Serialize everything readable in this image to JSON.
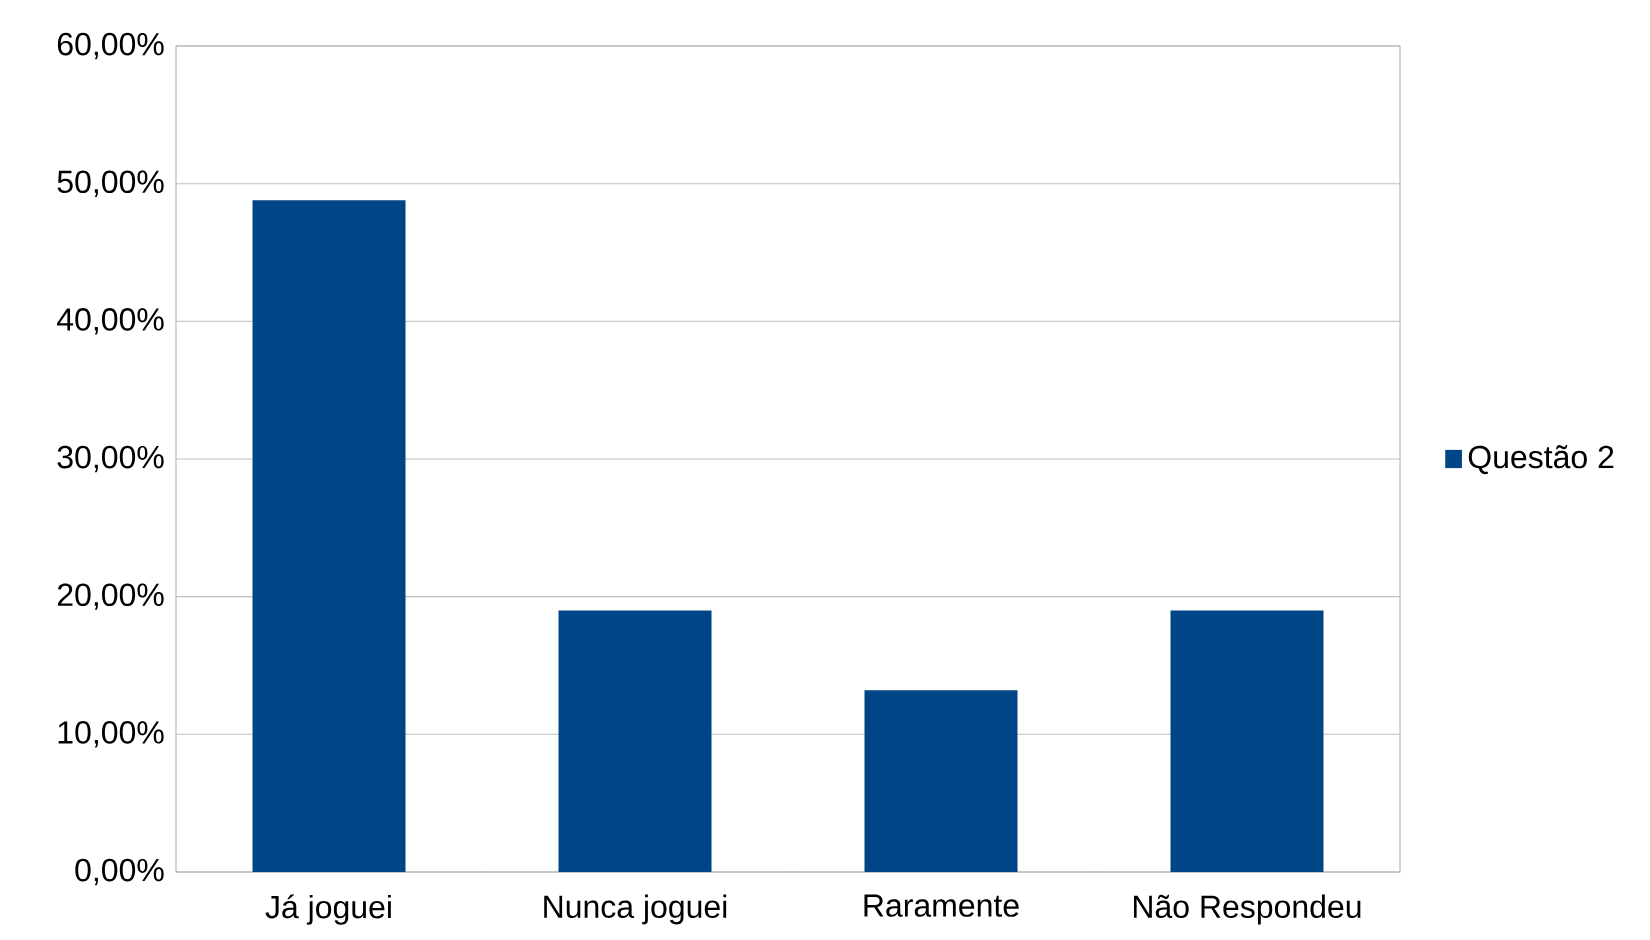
{
  "chart_data": {
    "type": "bar",
    "categories": [
      "Já joguei",
      "Nunca joguei",
      "Raramente",
      "Não Respondeu"
    ],
    "series": [
      {
        "name": "Questão 2",
        "color": "#004586",
        "values": [
          48.8,
          19.0,
          13.2,
          19.0
        ]
      }
    ],
    "ylim": [
      0,
      60
    ],
    "yticks": [
      {
        "value": 0,
        "label": "0,00%"
      },
      {
        "value": 10,
        "label": "10,00%"
      },
      {
        "value": 20,
        "label": "20,00%"
      },
      {
        "value": 30,
        "label": "30,00%"
      },
      {
        "value": 40,
        "label": "40,00%"
      },
      {
        "value": 50,
        "label": "50,00%"
      },
      {
        "value": 60,
        "label": "60,00%"
      }
    ],
    "grid": "y",
    "legend": "right"
  }
}
